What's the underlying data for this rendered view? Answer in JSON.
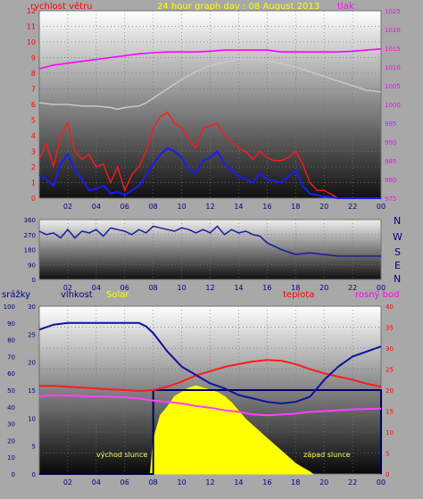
{
  "header": {
    "left_label": "rychlost větru",
    "title": "24 hour graph day : 08 August 2013",
    "right_label": "tlak"
  },
  "colors": {
    "wind": "#ff1a1a",
    "gust_dir": "#1a1aff",
    "pressure": "#ff00ff",
    "temperature_avg": "#c8c8c8",
    "humidity": "#1010a0",
    "solar": "#ffff00",
    "dew": "#ff40ff",
    "rain": "#000080",
    "bg": "#a8a8a8"
  },
  "compass": {
    "n": "N",
    "w": "W",
    "s": "S",
    "e": "E",
    "n2": "N"
  },
  "bottom_header": {
    "rain": "srážky",
    "humidity": "vlhkost",
    "solar": "Solar",
    "temp": "teplota",
    "dew": "rosný bod"
  },
  "annotations": {
    "sunrise": "východ slunce",
    "sunset": "západ slunce"
  },
  "chart_data": [
    {
      "type": "line",
      "name": "wind-pressure",
      "x_ticks": [
        "02",
        "04",
        "06",
        "08",
        "10",
        "12",
        "14",
        "16",
        "18",
        "20",
        "22",
        "00"
      ],
      "y_left_ticks": [
        "0",
        "1",
        "2",
        "3",
        "4",
        "5",
        "6",
        "7",
        "8",
        "9",
        "10",
        "11",
        "12"
      ],
      "y_right_ticks": [
        "975",
        "980",
        "985",
        "990",
        "995",
        "1000",
        "1005",
        "1010",
        "1015",
        "1020",
        "1025"
      ],
      "ylim_left": [
        0,
        12
      ],
      "ylim_right": [
        975,
        1025
      ],
      "xlim": [
        0,
        24
      ],
      "series": [
        {
          "name": "tlak",
          "axis": "right",
          "x": [
            0,
            0.5,
            1,
            2,
            3,
            4,
            5,
            6,
            7,
            8,
            9,
            10,
            11,
            12,
            13,
            14,
            15,
            16,
            17,
            18,
            19,
            20,
            21,
            22,
            23,
            24
          ],
          "values": [
            1009.5,
            1010,
            1010.5,
            1011,
            1011.5,
            1012,
            1012.5,
            1013,
            1013.5,
            1013.8,
            1014,
            1014,
            1014,
            1014.2,
            1014.5,
            1014.5,
            1014.5,
            1014.5,
            1014,
            1014,
            1014,
            1014,
            1014,
            1014.2,
            1014.5,
            1014.8
          ]
        }
      ],
      "temp_gray": {
        "x": [
          0,
          1,
          2,
          3,
          4,
          5,
          5.5,
          6,
          7,
          7.5,
          8,
          9,
          10,
          11,
          12,
          13,
          14,
          15,
          16,
          17,
          18,
          19,
          20,
          21,
          22,
          23,
          24
        ],
        "values": [
          6.1,
          6,
          6,
          5.9,
          5.9,
          5.8,
          5.7,
          5.8,
          5.9,
          6.1,
          6.4,
          7,
          7.6,
          8.1,
          8.5,
          8.7,
          8.9,
          8.9,
          8.8,
          8.6,
          8.4,
          8.1,
          7.8,
          7.5,
          7.2,
          6.9,
          6.8
        ]
      },
      "wind_avg": {
        "x": [
          0,
          0.5,
          1,
          1.5,
          2,
          2.5,
          3,
          3.5,
          4,
          4.5,
          5,
          5.5,
          6,
          6.5,
          7,
          7.5,
          8,
          8.5,
          9,
          9.5,
          10,
          10.5,
          11,
          11.5,
          12,
          12.5,
          13,
          13.5,
          14,
          14.5,
          15,
          15.5,
          16,
          16.5,
          17,
          17.5,
          18,
          18.5,
          19,
          19.5,
          20,
          21,
          22,
          23,
          24
        ],
        "values": [
          1.5,
          1.2,
          0.8,
          2.2,
          2.8,
          1.8,
          1.2,
          0.5,
          0.6,
          0.8,
          0.3,
          0.4,
          0.2,
          0.5,
          0.8,
          1.5,
          2.2,
          2.8,
          3.2,
          3.0,
          2.6,
          1.8,
          1.6,
          2.4,
          2.6,
          3.0,
          2.2,
          1.8,
          1.4,
          1.2,
          1.0,
          1.6,
          1.2,
          1.1,
          1.0,
          1.4,
          1.8,
          0.8,
          0.3,
          0.2,
          0.1,
          0,
          0,
          0,
          0
        ]
      },
      "wind_gust": {
        "x": [
          0,
          0.5,
          1,
          1.5,
          2,
          2.5,
          3,
          3.5,
          4,
          4.5,
          5,
          5.5,
          6,
          6.5,
          7,
          7.5,
          8,
          8.5,
          9,
          9.5,
          10,
          10.5,
          11,
          11.5,
          12,
          12.5,
          13,
          13.5,
          14,
          14.5,
          15,
          15.5,
          16,
          16.5,
          17,
          17.5,
          18,
          18.5,
          19,
          19.5,
          20,
          21,
          22,
          23,
          24
        ],
        "values": [
          2.5,
          3.5,
          2.0,
          4.0,
          4.8,
          3.0,
          2.5,
          2.8,
          2.0,
          2.2,
          1.0,
          2.0,
          0.5,
          1.5,
          2.0,
          3.0,
          4.5,
          5.2,
          5.5,
          4.8,
          4.5,
          3.8,
          3.2,
          4.5,
          4.6,
          4.8,
          4.0,
          3.6,
          3.2,
          3.0,
          2.5,
          3.0,
          2.6,
          2.4,
          2.4,
          2.6,
          3.0,
          2.2,
          1.0,
          0.5,
          0.5,
          0,
          0,
          0,
          0
        ]
      }
    },
    {
      "type": "line",
      "name": "wind-direction",
      "y_ticks": [
        "0",
        "90",
        "180",
        "270",
        "360"
      ],
      "ylim": [
        0,
        360
      ],
      "xlim": [
        0,
        24
      ],
      "x": [
        0,
        0.5,
        1,
        1.5,
        2,
        2.5,
        3,
        3.5,
        4,
        4.5,
        5,
        5.5,
        6,
        6.5,
        7,
        7.5,
        8,
        8.5,
        9,
        9.5,
        10,
        10.5,
        11,
        11.5,
        12,
        12.5,
        13,
        13.5,
        14,
        14.5,
        15,
        15.5,
        16,
        16.5,
        17,
        18,
        19,
        20,
        21,
        22,
        23,
        24
      ],
      "values": [
        290,
        270,
        280,
        250,
        300,
        250,
        290,
        280,
        300,
        260,
        310,
        300,
        290,
        270,
        300,
        280,
        320,
        310,
        300,
        290,
        310,
        300,
        280,
        300,
        280,
        320,
        270,
        300,
        280,
        290,
        270,
        260,
        220,
        200,
        180,
        150,
        160,
        150,
        140,
        140,
        140,
        140
      ]
    },
    {
      "type": "area",
      "name": "temp-humidity-solar",
      "x_ticks": [
        "02",
        "04",
        "06",
        "08",
        "10",
        "12",
        "14",
        "16",
        "18",
        "20",
        "22",
        "00"
      ],
      "y_rain_ticks": [
        "0",
        "10",
        "20",
        "30",
        "40",
        "50",
        "60",
        "70",
        "80",
        "90",
        "100"
      ],
      "y_left_ticks": [
        "0",
        "5",
        "10",
        "15",
        "20",
        "25",
        "30"
      ],
      "y_right_ticks": [
        "0",
        "5",
        "10",
        "15",
        "20",
        "25",
        "30",
        "35",
        "40"
      ],
      "humidity": {
        "x": [
          0,
          1,
          2,
          3,
          4,
          5,
          6,
          7,
          7.5,
          8,
          9,
          10,
          11,
          12,
          13,
          14,
          15,
          16,
          17,
          18,
          19,
          20,
          21,
          22,
          23,
          24
        ],
        "values": [
          86,
          89,
          90,
          90,
          90,
          90,
          90,
          90,
          88,
          84,
          73,
          64,
          59,
          54,
          51,
          47,
          45,
          43,
          42,
          43,
          46,
          56,
          64,
          70,
          73,
          76
        ]
      },
      "temperature": {
        "x": [
          0,
          1,
          2,
          3,
          4,
          5,
          6,
          7,
          8,
          9,
          10,
          11,
          12,
          13,
          14,
          15,
          16,
          17,
          18,
          19,
          20,
          21,
          22,
          23,
          24
        ],
        "values": [
          21,
          21,
          20.8,
          20.6,
          20.4,
          20.2,
          20,
          19.8,
          20,
          20.8,
          22,
          23.5,
          24.5,
          25.5,
          26.2,
          26.8,
          27.2,
          27,
          26.2,
          25,
          24,
          23.2,
          22.5,
          21.5,
          20.8
        ]
      },
      "dewpoint": {
        "x": [
          0,
          1,
          2,
          3,
          4,
          5,
          6,
          7,
          8,
          9,
          10,
          11,
          12,
          13,
          14,
          15,
          16,
          17,
          18,
          19,
          20,
          21,
          22,
          23,
          24
        ],
        "values": [
          18.5,
          18.8,
          18.7,
          18.6,
          18.5,
          18.4,
          18.3,
          18,
          17.5,
          17.2,
          16.8,
          16.2,
          15.8,
          15.2,
          14.8,
          14.2,
          14,
          14.2,
          14.4,
          14.8,
          15,
          15.2,
          15.4,
          15.5,
          15.6
        ]
      },
      "solar": {
        "x": [
          7.8,
          8,
          8.5,
          9,
          9.5,
          10,
          10.5,
          11,
          11.5,
          12,
          12.5,
          13,
          13.5,
          14,
          14.5,
          15,
          15.5,
          16,
          16.5,
          17,
          17.5,
          18,
          18.5,
          19,
          19.2
        ],
        "values": [
          0,
          8,
          14,
          16,
          18.5,
          19.5,
          20.5,
          21,
          20.5,
          20,
          19.5,
          18.5,
          17,
          15,
          13,
          11.5,
          10,
          8.5,
          7,
          5.5,
          4,
          2.5,
          1.5,
          0.5,
          0
        ]
      },
      "rain_total": {
        "x": [
          0,
          8,
          8,
          24
        ],
        "values": [
          0,
          0,
          15,
          15
        ]
      }
    }
  ]
}
